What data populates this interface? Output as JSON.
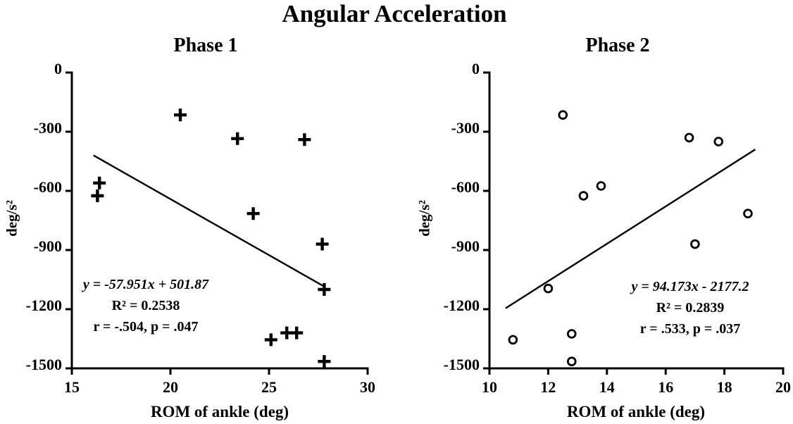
{
  "figure": {
    "title": "Angular Acceleration",
    "background_color": "#ffffff",
    "ink_color": "#000000"
  },
  "chart_data": [
    {
      "type": "scatter",
      "title": "Phase 1",
      "xlabel": "ROM of ankle (deg)",
      "ylabel": "deg/s²",
      "marker": "plus",
      "grid": false,
      "legend_position": "none",
      "xlim": [
        15,
        30
      ],
      "ylim": [
        -1500,
        0
      ],
      "xticks": [
        15,
        20,
        25,
        30
      ],
      "yticks": [
        0,
        -300,
        -600,
        -900,
        -1200,
        -1500
      ],
      "points": [
        [
          20.5,
          -215
        ],
        [
          23.4,
          -335
        ],
        [
          26.8,
          -340
        ],
        [
          16.4,
          -560
        ],
        [
          16.3,
          -625
        ],
        [
          24.2,
          -715
        ],
        [
          27.7,
          -870
        ],
        [
          27.8,
          -1100
        ],
        [
          25.1,
          -1355
        ],
        [
          25.9,
          -1320
        ],
        [
          26.4,
          -1320
        ],
        [
          27.8,
          -1465
        ]
      ],
      "trendline": {
        "x1": 16.1,
        "y1": -420,
        "x2": 27.8,
        "y2": -1085
      },
      "annotation": {
        "equation": "y = -57.951x + 501.87",
        "r_squared": "R² = 0.2538",
        "stats": "r = -.504, p = .047"
      }
    },
    {
      "type": "scatter",
      "title": "Phase 2",
      "xlabel": "ROM of ankle (deg)",
      "ylabel": "deg/s²",
      "marker": "circle",
      "grid": false,
      "legend_position": "none",
      "xlim": [
        10,
        20
      ],
      "ylim": [
        -1500,
        0
      ],
      "xticks": [
        10,
        12,
        14,
        16,
        18,
        20
      ],
      "yticks": [
        0,
        -300,
        -600,
        -900,
        -1200,
        -1500
      ],
      "points": [
        [
          12.5,
          -215
        ],
        [
          16.8,
          -330
        ],
        [
          17.8,
          -350
        ],
        [
          13.8,
          -575
        ],
        [
          13.2,
          -625
        ],
        [
          18.8,
          -715
        ],
        [
          17.0,
          -870
        ],
        [
          12.0,
          -1095
        ],
        [
          12.8,
          -1325
        ],
        [
          10.8,
          -1355
        ],
        [
          12.8,
          -1465
        ]
      ],
      "trendline": {
        "x1": 10.55,
        "y1": -1195,
        "x2": 19.05,
        "y2": -390
      },
      "annotation": {
        "equation": "y = 94.173x - 2177.2",
        "r_squared": "R² = 0.2839",
        "stats": "r = .533, p = .037"
      }
    }
  ]
}
